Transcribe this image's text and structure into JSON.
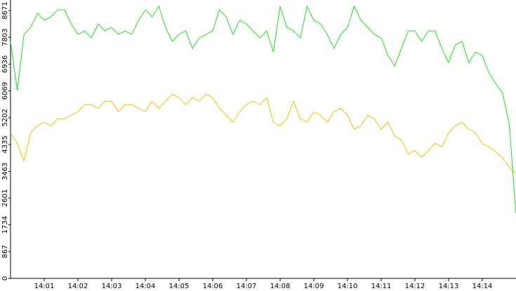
{
  "chart_data": {
    "type": "line",
    "x": [
      840,
      840.2,
      840.4,
      840.6,
      840.8,
      841,
      841.2,
      841.4,
      841.6,
      841.8,
      842,
      842.2,
      842.4,
      842.6,
      842.8,
      843,
      843.2,
      843.4,
      843.6,
      843.8,
      844,
      844.2,
      844.4,
      844.6,
      844.8,
      845,
      845.2,
      845.4,
      845.6,
      845.8,
      846,
      846.2,
      846.4,
      846.6,
      846.8,
      847,
      847.2,
      847.4,
      847.6,
      847.8,
      848,
      848.2,
      848.4,
      848.6,
      848.8,
      849,
      849.2,
      849.4,
      849.6,
      849.8,
      850,
      850.2,
      850.4,
      850.6,
      850.8,
      851,
      851.2,
      851.4,
      851.6,
      851.8,
      852,
      852.2,
      852.4,
      852.6,
      852.8,
      853,
      853.2,
      853.4,
      853.6,
      853.8,
      854,
      854.2,
      854.4,
      854.6,
      854.8,
      855
    ],
    "series": [
      {
        "color": "#22dd22",
        "values": [
          7670,
          6077,
          7898,
          8125,
          8580,
          8353,
          8467,
          8694,
          8694,
          8239,
          7898,
          8011,
          7784,
          8239,
          8011,
          8125,
          7898,
          8011,
          7898,
          8353,
          8694,
          8467,
          8808,
          8125,
          7670,
          7898,
          8011,
          7443,
          7784,
          7898,
          8011,
          8694,
          8467,
          7898,
          8353,
          8239,
          8011,
          7784,
          8011,
          7329,
          8808,
          8125,
          8011,
          7784,
          8808,
          8353,
          8239,
          7898,
          7443,
          7898,
          8125,
          8808,
          8353,
          8125,
          7898,
          7784,
          7215,
          6874,
          7443,
          8011,
          8011,
          7670,
          8011,
          8011,
          7443,
          6987,
          7556,
          7670,
          6987,
          7329,
          7215,
          6646,
          6300,
          6000,
          5000,
          2100
        ]
      },
      {
        "color": "#f0c000",
        "values": [
          4711,
          4370,
          3801,
          4711,
          4939,
          5053,
          4939,
          5167,
          5167,
          5280,
          5394,
          5622,
          5622,
          5508,
          5736,
          5736,
          5394,
          5622,
          5622,
          5508,
          5394,
          5736,
          5508,
          5736,
          5963,
          5849,
          5622,
          5849,
          5736,
          5963,
          5849,
          5508,
          5280,
          5053,
          5394,
          5622,
          5736,
          5622,
          5849,
          5053,
          4939,
          5167,
          5736,
          5167,
          5053,
          5394,
          5280,
          5053,
          5394,
          5508,
          5280,
          4825,
          4939,
          5280,
          5167,
          4825,
          5053,
          4598,
          4484,
          4028,
          4142,
          3915,
          4142,
          4370,
          4256,
          4711,
          4939,
          5053,
          4825,
          4711,
          4370,
          4256,
          4100,
          3900,
          3600,
          3400
        ]
      }
    ],
    "xlim": [
      840,
      855
    ],
    "xticks": [
      {
        "value": 841,
        "label": "14:01"
      },
      {
        "value": 842,
        "label": "14:02"
      },
      {
        "value": 843,
        "label": "14:03"
      },
      {
        "value": 844,
        "label": "14:04"
      },
      {
        "value": 845,
        "label": "14:05"
      },
      {
        "value": 846,
        "label": "14:06"
      },
      {
        "value": 847,
        "label": "14:07"
      },
      {
        "value": 848,
        "label": "14:08"
      },
      {
        "value": 849,
        "label": "14:09"
      },
      {
        "value": 850,
        "label": "14:10"
      },
      {
        "value": 851,
        "label": "14:11"
      },
      {
        "value": 852,
        "label": "14:12"
      },
      {
        "value": 853,
        "label": "14:13"
      },
      {
        "value": 854,
        "label": "14:14"
      }
    ],
    "ylim": [
      0,
      9012
    ],
    "yticks": [
      0,
      867,
      1734,
      2601,
      3463,
      4335,
      5202,
      6069,
      6936,
      7803,
      8671
    ]
  }
}
